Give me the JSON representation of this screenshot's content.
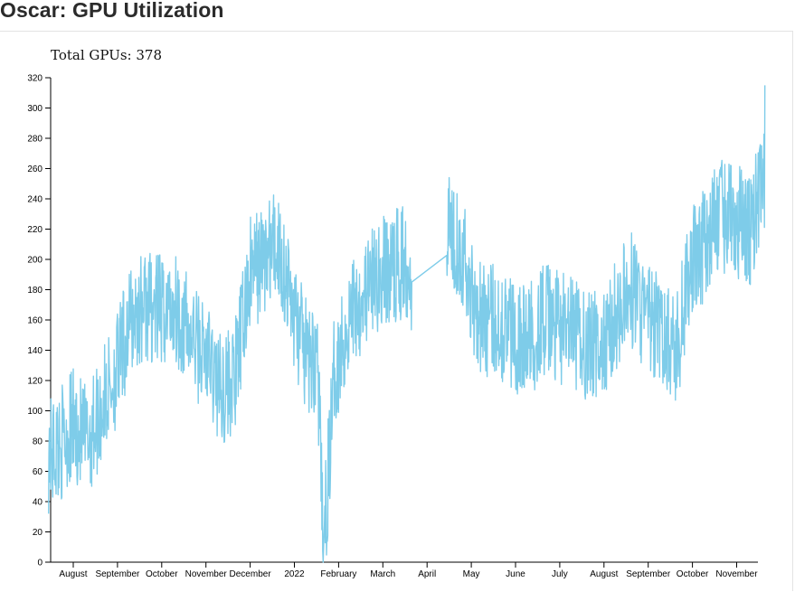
{
  "page": {
    "title": "Oscar: GPU Utilization"
  },
  "total": {
    "label": "Total GPUs: 378"
  },
  "chart_data": {
    "type": "line",
    "title": "",
    "xlabel": "",
    "ylabel": "",
    "ylim": [
      0,
      320
    ],
    "yticks": [
      0,
      20,
      40,
      60,
      80,
      100,
      120,
      140,
      160,
      180,
      200,
      220,
      240,
      260,
      280,
      300,
      320
    ],
    "grid": false,
    "x_ticks": [
      "August",
      "September",
      "October",
      "November",
      "December",
      "2022",
      "February",
      "March",
      "April",
      "May",
      "June",
      "July",
      "August",
      "September",
      "October",
      "November"
    ],
    "series_color": "#7ecce9",
    "series": [
      {
        "x": [
          "2021-07-15",
          "2021-07-25",
          "2021-08-01",
          "2021-08-10",
          "2021-08-20",
          "2021-09-01",
          "2021-09-10",
          "2021-09-20",
          "2021-10-01",
          "2021-10-10",
          "2021-10-20",
          "2021-11-01",
          "2021-11-10",
          "2021-11-20",
          "2021-12-01",
          "2021-12-10",
          "2021-12-20",
          "2022-01-01",
          "2022-01-10",
          "2022-01-16",
          "2022-01-20",
          "2022-01-28",
          "2022-02-01",
          "2022-02-10",
          "2022-02-20",
          "2022-03-01",
          "2022-03-10",
          "2022-03-20",
          "2022-03-22",
          "2022-04-15",
          "2022-04-25",
          "2022-05-01",
          "2022-05-10",
          "2022-05-20",
          "2022-06-01",
          "2022-06-10",
          "2022-06-20",
          "2022-07-01",
          "2022-07-10",
          "2022-07-20",
          "2022-08-01",
          "2022-08-10",
          "2022-08-20",
          "2022-09-01",
          "2022-09-10",
          "2022-09-20",
          "2022-10-01",
          "2022-10-10",
          "2022-10-20",
          "2022-11-01",
          "2022-11-10",
          "2022-11-20"
        ],
        "values": [
          70,
          80,
          90,
          80,
          100,
          130,
          160,
          170,
          165,
          170,
          150,
          135,
          115,
          120,
          190,
          200,
          210,
          160,
          130,
          140,
          5,
          130,
          140,
          170,
          180,
          190,
          195,
          200,
          185,
          225,
          210,
          180,
          160,
          160,
          150,
          145,
          160,
          155,
          150,
          145,
          140,
          165,
          180,
          160,
          150,
          140,
          200,
          210,
          230,
          225,
          220,
          255
        ]
      }
    ]
  }
}
